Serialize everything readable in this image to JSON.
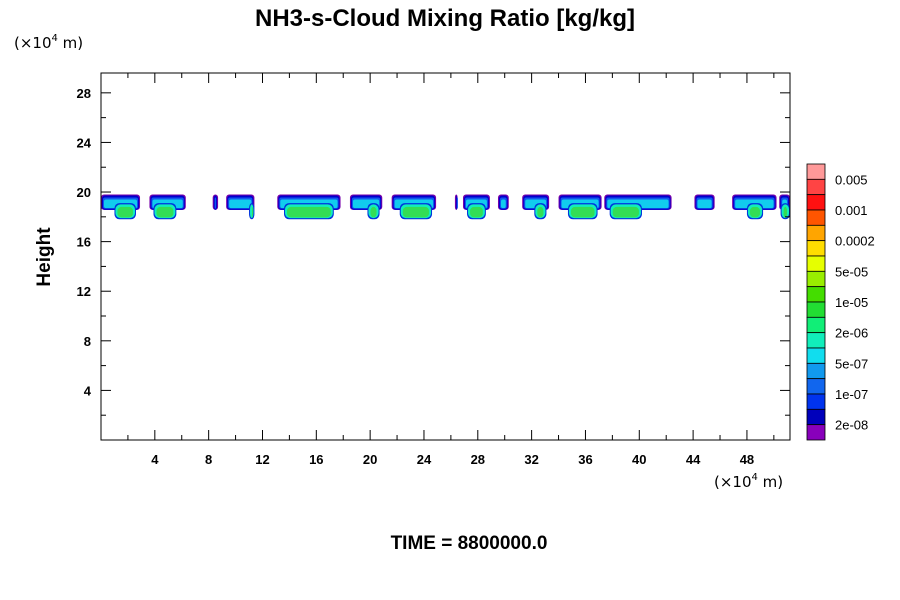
{
  "chart_data": {
    "type": "contour",
    "title": "NH3-s-Cloud Mixing Ratio [kg/kg]",
    "xlabel": "",
    "ylabel": "Height",
    "x_unit": {
      "prefix": "(×10",
      "exp": "4",
      "suffix": " m)"
    },
    "y_unit": {
      "prefix": "(×10",
      "exp": "4",
      "suffix": " m)"
    },
    "xlim": [
      0,
      51.2
    ],
    "ylim": [
      0,
      29.6
    ],
    "x_ticks": [
      4,
      8,
      12,
      16,
      20,
      24,
      28,
      32,
      36,
      40,
      44,
      48
    ],
    "y_ticks": [
      4,
      8,
      12,
      16,
      20,
      24,
      28
    ],
    "x_minor_step": 2,
    "y_minor_step": 2,
    "footer": "TIME = 8800000.0",
    "colorbar": {
      "labels": [
        "0.005",
        "0.001",
        "0.0002",
        "5e-05",
        "1e-05",
        "2e-06",
        "5e-07",
        "1e-07",
        "2e-08"
      ],
      "colors": [
        "#ff9999",
        "#ff4444",
        "#ff1111",
        "#ff5500",
        "#ffa500",
        "#ffdd00",
        "#e6ff00",
        "#99ee00",
        "#44dd00",
        "#22dd33",
        "#11ee77",
        "#11eebb",
        "#11ddee",
        "#1199ee",
        "#1166ee",
        "#0033ee",
        "#0000bb",
        "#8800bb"
      ]
    },
    "cloud_base": 17.8,
    "cloud_top": 19.8,
    "cloud_segments": [
      {
        "x0": 0.0,
        "x1": 2.9,
        "core": [
          1.0,
          2.6
        ]
      },
      {
        "x0": 3.6,
        "x1": 6.3,
        "core": [
          3.9,
          5.6
        ]
      },
      {
        "x0": 8.3,
        "x1": 8.7,
        "core": null
      },
      {
        "x0": 9.3,
        "x1": 11.4,
        "core": [
          11.0,
          11.4
        ]
      },
      {
        "x0": 13.1,
        "x1": 17.8,
        "core": [
          13.6,
          17.3
        ]
      },
      {
        "x0": 18.5,
        "x1": 20.9,
        "core": [
          19.8,
          20.7
        ]
      },
      {
        "x0": 21.6,
        "x1": 24.9,
        "core": [
          22.2,
          24.6
        ]
      },
      {
        "x0": 26.3,
        "x1": 26.5,
        "core": null
      },
      {
        "x0": 26.9,
        "x1": 28.9,
        "core": [
          27.2,
          28.6
        ]
      },
      {
        "x0": 29.5,
        "x1": 30.3,
        "core": null
      },
      {
        "x0": 31.3,
        "x1": 33.3,
        "core": [
          32.2,
          33.1
        ]
      },
      {
        "x0": 34.0,
        "x1": 37.2,
        "core": [
          34.7,
          36.9
        ]
      },
      {
        "x0": 37.4,
        "x1": 42.4,
        "core": [
          37.8,
          40.2
        ]
      },
      {
        "x0": 44.1,
        "x1": 45.6,
        "core": null
      },
      {
        "x0": 46.9,
        "x1": 50.2,
        "core": [
          48.0,
          49.2
        ]
      },
      {
        "x0": 50.4,
        "x1": 51.2,
        "core": [
          50.5,
          51.2
        ]
      }
    ]
  }
}
